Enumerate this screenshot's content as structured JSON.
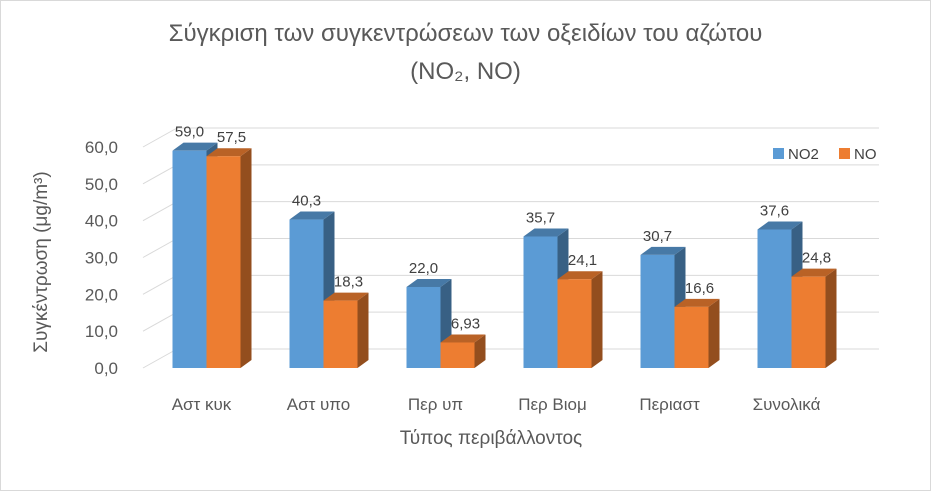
{
  "chart_data": {
    "type": "bar",
    "title_line1": "Σύγκριση των συγκεντρώσεων των οξειδίων του αζώτου",
    "title_line2": "(NO₂, NO)",
    "xlabel": "Τύπος περιβάλλοντος",
    "ylabel": "Συγκέντρωση (μg/m³)",
    "categories": [
      "Αστ κυκ",
      "Αστ υπο",
      "Περ υπ",
      "Περ Βιομ",
      "Περιαστ",
      "Συνολικά"
    ],
    "series": [
      {
        "name": "NO2",
        "values": [
          59.0,
          40.3,
          22.0,
          35.7,
          30.7,
          37.6
        ],
        "labels": [
          "59,0",
          "40,3",
          "22,0",
          "35,7",
          "30,7",
          "37,6"
        ],
        "color": "#5b9bd5"
      },
      {
        "name": "NO",
        "values": [
          57.5,
          18.3,
          6.93,
          24.1,
          16.6,
          24.8
        ],
        "labels": [
          "57,5",
          "18,3",
          "6,93",
          "24,1",
          "16,6",
          "24,8"
        ],
        "color": "#ed7d31"
      }
    ],
    "yticks": [
      "0,0",
      "10,0",
      "20,0",
      "30,0",
      "40,0",
      "50,0",
      "60,0"
    ],
    "ylim": [
      0,
      60
    ],
    "grid": true,
    "legend": "top-right",
    "style": "3d-column"
  }
}
